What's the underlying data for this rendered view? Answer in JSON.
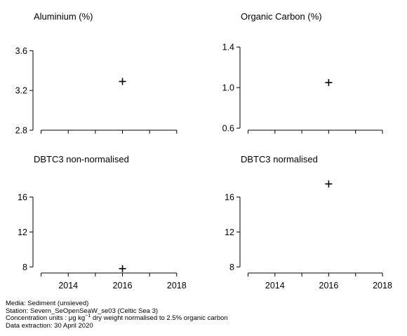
{
  "chart_data": [
    {
      "type": "scatter",
      "title": "Aluminium (%)",
      "xlim": [
        2012.7,
        2018.6
      ],
      "ylim": [
        2.8,
        3.8
      ],
      "yticks": [
        2.8,
        3.2,
        3.6
      ],
      "ytick_labels": [
        "2.8",
        "3.2",
        "3.6"
      ],
      "xticks": [
        2014,
        2016,
        2018
      ],
      "xtick_labels": [],
      "minor_xticks": [
        2013,
        2014,
        2015,
        2016,
        2017,
        2018
      ],
      "points": [
        {
          "x": 2016,
          "y": 3.29
        }
      ]
    },
    {
      "type": "scatter",
      "title": "Organic Carbon (%)",
      "xlim": [
        2012.7,
        2018.6
      ],
      "ylim": [
        0.58,
        1.56
      ],
      "yticks": [
        0.6,
        1.0,
        1.4
      ],
      "ytick_labels": [
        "0.6",
        "1.0",
        "1.4"
      ],
      "xticks": [
        2014,
        2016,
        2018
      ],
      "xtick_labels": [],
      "minor_xticks": [
        2013,
        2014,
        2015,
        2016,
        2017,
        2018
      ],
      "points": [
        {
          "x": 2016,
          "y": 1.05
        }
      ]
    },
    {
      "type": "scatter",
      "title": "DBTC3 non-normalised",
      "xlim": [
        2012.7,
        2018.6
      ],
      "ylim": [
        7.3,
        19.0
      ],
      "yticks": [
        8,
        12,
        16
      ],
      "ytick_labels": [
        "8",
        "12",
        "16"
      ],
      "xticks": [
        2014,
        2016,
        2018
      ],
      "xtick_labels": [
        "2014",
        "2016",
        "2018"
      ],
      "minor_xticks": [
        2013,
        2014,
        2015,
        2016,
        2017,
        2018
      ],
      "points": [
        {
          "x": 2016,
          "y": 7.8
        }
      ]
    },
    {
      "type": "scatter",
      "title": "DBTC3 normalised",
      "xlim": [
        2012.7,
        2018.6
      ],
      "ylim": [
        7.3,
        19.0
      ],
      "yticks": [
        8,
        12,
        16
      ],
      "ytick_labels": [
        "8",
        "12",
        "16"
      ],
      "xticks": [
        2014,
        2016,
        2018
      ],
      "xtick_labels": [
        "2014",
        "2016",
        "2018"
      ],
      "minor_xticks": [
        2013,
        2014,
        2015,
        2016,
        2017,
        2018
      ],
      "points": [
        {
          "x": 2016,
          "y": 17.5
        }
      ]
    }
  ],
  "footer": {
    "media": "Media: Sediment (unsieved)",
    "station": "Station: Severn_SeOpenSeaW_se03 (Celtic Sea 3)",
    "units_prefix": "Concentration units :  μg kg",
    "units_sup": "−1",
    "units_suffix": " dry weight normalised to 2.5% organic carbon",
    "extraction": "Data extraction: 30 April 2020"
  }
}
